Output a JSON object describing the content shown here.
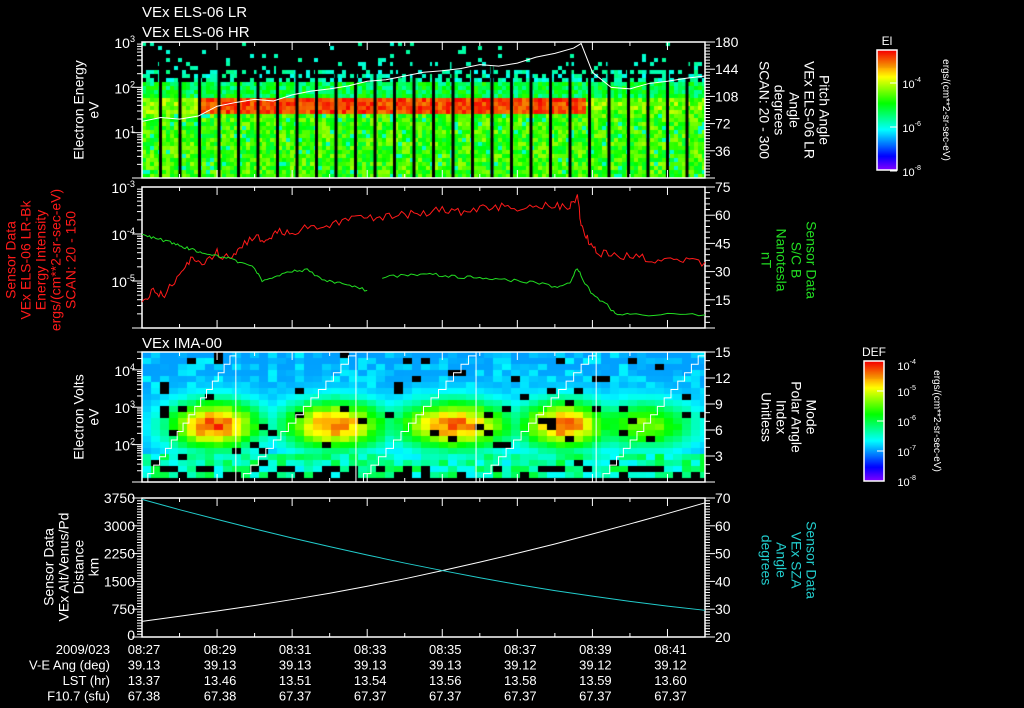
{
  "title_lines": [
    "VEx ELS-06 LR",
    "VEx ELS-06 HR"
  ],
  "colors": {
    "axis": "#ffffff",
    "red": "#ff1a1a",
    "green": "#22dd22",
    "cyan": "#22cccc",
    "white": "#ffffff"
  },
  "chart_data": [
    {
      "type": "heatmap",
      "name": "els-spectrogram",
      "ylabel": [
        "Electron Energy",
        "eV"
      ],
      "yscale": "log",
      "ylim": [
        1,
        1000
      ],
      "y_ticks": [
        {
          "base": "10",
          "exp": "3",
          "value": 1000
        },
        {
          "base": "10",
          "exp": "2",
          "value": 100
        },
        {
          "base": "10",
          "exp": "1",
          "value": 10
        }
      ],
      "right_label": [
        "Pitch Angle",
        "VEx ELS-06 LR",
        "Angle",
        "degrees",
        "SCAN: 20 - 300"
      ],
      "right_ylim": [
        0,
        180
      ],
      "right_ticks": [
        "180",
        "144",
        "108",
        "72",
        "36"
      ],
      "overlay_line": {
        "name": "pitch-angle",
        "color": "#ffffff",
        "t": [
          27.0,
          27.5,
          28.0,
          28.5,
          29.0,
          29.5,
          30.0,
          30.5,
          31.0,
          31.5,
          32.0,
          32.5,
          33.0,
          33.5,
          34.0,
          34.5,
          35.0,
          35.5,
          36.0,
          36.5,
          37.0,
          37.5,
          38.0,
          38.5,
          38.7,
          39.0,
          39.5,
          40.0,
          40.5,
          41.0,
          41.5,
          42.0
        ],
        "deg": [
          75,
          80,
          78,
          82,
          95,
          100,
          104,
          102,
          110,
          115,
          118,
          122,
          128,
          130,
          135,
          140,
          142,
          145,
          150,
          148,
          152,
          160,
          165,
          172,
          178,
          140,
          120,
          118,
          125,
          128,
          132,
          135
        ]
      },
      "colorbar": {
        "title": "El",
        "ticks": [
          {
            "base": "10",
            "exp": "-4"
          },
          {
            "base": "10",
            "exp": "-6"
          },
          {
            "base": "10",
            "exp": "-8"
          }
        ],
        "unit": "ergs/(cm**2-sr-sec-eV)"
      }
    },
    {
      "type": "line",
      "name": "intensity-and-field",
      "ylabel": [
        "Sensor Data",
        "VEx ELS-06 LR-Bk",
        "Energy Intensity",
        "ergs/(cm**2-sr-sec-eV)",
        "SCAN: 20 - 150"
      ],
      "yscale": "log",
      "ylim": [
        1e-06,
        0.001
      ],
      "y_ticks": [
        {
          "base": "10",
          "exp": "-3",
          "value": 0.001
        },
        {
          "base": "10",
          "exp": "-4",
          "value": 0.0001
        },
        {
          "base": "10",
          "exp": "-5",
          "value": 1e-05
        }
      ],
      "right_label": [
        "Sensor Data",
        "S/C B",
        "Nanotesla",
        "nT"
      ],
      "right_ylim": [
        0,
        75
      ],
      "right_ticks": [
        "75",
        "60",
        "45",
        "30",
        "15"
      ],
      "series": [
        {
          "name": "Energy Intensity",
          "axis": "left",
          "color": "#ff1a1a",
          "t": [
            27.0,
            27.3,
            27.6,
            28.0,
            28.3,
            28.6,
            29.0,
            29.3,
            29.6,
            30.0,
            30.3,
            30.6,
            31.0,
            31.5,
            32.0,
            32.5,
            33.0,
            33.5,
            34.0,
            34.5,
            35.0,
            35.5,
            36.0,
            36.5,
            37.0,
            37.5,
            38.0,
            38.4,
            38.6,
            38.7,
            38.9,
            39.1,
            39.5,
            40.0,
            40.5,
            41.0,
            41.5,
            42.0
          ],
          "values": [
            4e-06,
            6e-06,
            5e-06,
            1.5e-05,
            3e-05,
            2.5e-05,
            4e-05,
            3e-05,
            5e-05,
            9e-05,
            7e-05,
            0.00012,
            0.00011,
            0.00015,
            0.00016,
            0.0002,
            0.00022,
            0.00024,
            0.00026,
            0.00028,
            0.00032,
            0.0003,
            0.00036,
            0.00038,
            0.00035,
            0.0004,
            0.00042,
            0.00036,
            0.0007,
            0.00015,
            7e-05,
            4e-05,
            3.8e-05,
            3.2e-05,
            3e-05,
            2.8e-05,
            2.6e-05,
            2.5e-05
          ]
        },
        {
          "name": "S/C B",
          "axis": "right",
          "color": "#22dd22",
          "t": [
            27.0,
            27.3,
            27.7,
            28.0,
            28.3,
            28.6,
            29.0,
            29.3,
            29.6,
            30.0,
            30.2,
            30.6,
            31.0,
            31.4,
            31.8,
            32.2,
            32.6,
            33.0,
            null,
            33.4,
            34.0,
            34.5,
            35.0,
            35.5,
            36.0,
            36.5,
            37.0,
            37.5,
            38.0,
            38.4,
            38.6,
            38.8,
            39.0,
            39.4,
            39.6,
            40.0,
            41.0,
            42.0
          ],
          "values": [
            50,
            48,
            46,
            44,
            42,
            40,
            38,
            37,
            35,
            32,
            25,
            28,
            30,
            31,
            26,
            24,
            22,
            20,
            null,
            27,
            28,
            29,
            28,
            27,
            27,
            26,
            25,
            24,
            22,
            24,
            32,
            24,
            18,
            12,
            8,
            7,
            7,
            7
          ]
        }
      ]
    },
    {
      "type": "heatmap",
      "name": "ima-spectrogram",
      "title": "VEx IMA-00",
      "ylabel": [
        "Electron Volts",
        "eV"
      ],
      "yscale": "log",
      "ylim": [
        10,
        30000
      ],
      "y_ticks": [
        {
          "base": "10",
          "exp": "4",
          "value": 10000
        },
        {
          "base": "10",
          "exp": "3",
          "value": 1000
        },
        {
          "base": "10",
          "exp": "2",
          "value": 100
        }
      ],
      "right_label": [
        "Mode",
        "Polar Angle",
        "Index",
        "Unitless"
      ],
      "right_ylim": [
        0,
        15
      ],
      "right_ticks": [
        "15",
        "12",
        "9",
        "6",
        "3"
      ],
      "overlay_line": {
        "name": "polar-angle-index",
        "color": "#ffffff",
        "cycle_starts": [
          27.0,
          29.5,
          32.7,
          35.9,
          39.1
        ]
      },
      "colorbar": {
        "title": "DEF",
        "ticks": [
          {
            "base": "10",
            "exp": "-4"
          },
          {
            "base": "10",
            "exp": "-5"
          },
          {
            "base": "10",
            "exp": "-6"
          },
          {
            "base": "10",
            "exp": "-7"
          },
          {
            "base": "10",
            "exp": "-8"
          }
        ],
        "unit": "ergs/(cm**2-sr-sec-eV)"
      }
    },
    {
      "type": "line",
      "name": "altitude-and-sza",
      "ylabel": [
        "Sensor Data",
        "VEx Alt/Venus/Pd",
        "Distance",
        "km"
      ],
      "ylim": [
        0,
        3750
      ],
      "y_ticks": [
        "3750",
        "3000",
        "2250",
        "1500",
        "750",
        "0"
      ],
      "right_label": [
        "Sensor Data",
        "VEx SZA",
        "Angle",
        "degrees"
      ],
      "right_ylim": [
        20,
        70
      ],
      "right_ticks": [
        "70",
        "60",
        "50",
        "40",
        "30",
        "20"
      ],
      "series": [
        {
          "name": "Altitude",
          "axis": "left",
          "color": "#ffffff",
          "t": [
            27,
            28,
            29,
            30,
            31,
            32,
            33,
            34,
            35,
            36,
            37,
            38,
            39,
            40,
            41,
            42
          ],
          "values": [
            420,
            560,
            700,
            850,
            1010,
            1180,
            1370,
            1570,
            1790,
            2020,
            2260,
            2510,
            2780,
            3050,
            3330,
            3620
          ]
        },
        {
          "name": "SZA",
          "axis": "right",
          "color": "#22cccc",
          "t": [
            27,
            28,
            29,
            30,
            31,
            32,
            33,
            34,
            35,
            36,
            37,
            38,
            39,
            40,
            41,
            42
          ],
          "values": [
            69.5,
            65.8,
            62.3,
            58.9,
            55.6,
            52.5,
            49.5,
            46.6,
            43.9,
            41.3,
            38.9,
            36.7,
            34.7,
            32.8,
            31.1,
            29.6
          ]
        }
      ]
    }
  ],
  "x_axis": {
    "ticks": [
      "08:27",
      "08:29",
      "08:31",
      "08:33",
      "08:35",
      "08:37",
      "08:39",
      "08:41"
    ],
    "tick_minutes": [
      27,
      29,
      31,
      33,
      35,
      37,
      39,
      41
    ],
    "rows": [
      {
        "label": "2009/023",
        "values": [
          "08:27",
          "08:29",
          "08:31",
          "08:33",
          "08:35",
          "08:37",
          "08:39",
          "08:41"
        ]
      },
      {
        "label": "V-E Ang (deg)",
        "values": [
          "39.13",
          "39.13",
          "39.13",
          "39.13",
          "39.13",
          "39.12",
          "39.12",
          "39.12"
        ]
      },
      {
        "label": "LST (hr)",
        "values": [
          "13.37",
          "13.46",
          "13.51",
          "13.54",
          "13.56",
          "13.58",
          "13.59",
          "13.60"
        ]
      },
      {
        "label": "F10.7 (sfu)",
        "values": [
          "67.38",
          "67.38",
          "67.37",
          "67.37",
          "67.37",
          "67.37",
          "67.37",
          "67.37"
        ]
      }
    ]
  }
}
